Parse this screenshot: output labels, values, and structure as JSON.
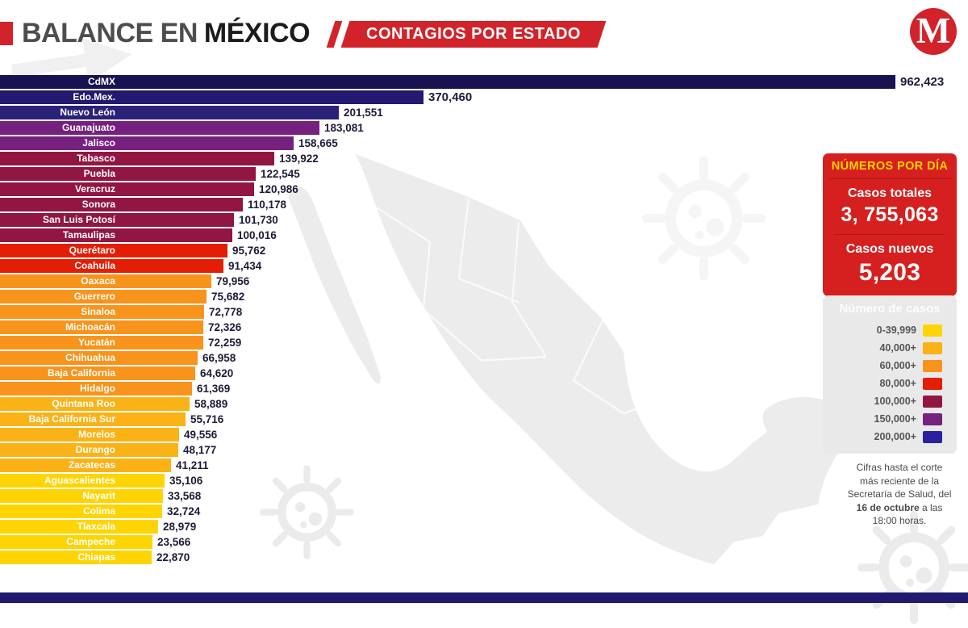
{
  "header": {
    "title_prefix": "BALANCE EN",
    "title_emphasis": "MÉXICO",
    "banner_label": "CONTAGIOS POR ESTADO",
    "logo_letter": "M",
    "logo_registered": "®"
  },
  "chart_data": {
    "type": "bar",
    "orientation": "horizontal",
    "title": "CONTAGIOS POR ESTADO",
    "xlim": [
      0,
      962423
    ],
    "categories": [
      "CdMX",
      "Edo.Mex.",
      "Nuevo León",
      "Guanajuato",
      "Jalisco",
      "Tabasco",
      "Puebla",
      "Veracruz",
      "Sonora",
      "San Luis Potosí",
      "Tamaulipas",
      "Querétaro",
      "Coahuila",
      "Oaxaca",
      "Guerrero",
      "Sinaloa",
      "Michoacán",
      "Yucatán",
      "Chihuahua",
      "Baja California",
      "Hidalgo",
      "Quintana Roo",
      "Baja California Sur",
      "Morelos",
      "Durango",
      "Zacatecas",
      "Aguascalientes",
      "Nayarit",
      "Colima",
      "Tlaxcala",
      "Campeche",
      "Chiapas"
    ],
    "values": [
      962423,
      370460,
      201551,
      183081,
      158665,
      139922,
      122545,
      120986,
      110178,
      101730,
      100016,
      95762,
      91434,
      79956,
      75682,
      72778,
      72326,
      72259,
      66958,
      64620,
      61369,
      58889,
      55716,
      49556,
      48177,
      41211,
      35106,
      33568,
      32724,
      28979,
      23566,
      22870
    ],
    "value_labels": [
      "962,423",
      "370,460",
      "201,551",
      "183,081",
      "158,665",
      "139,922",
      "122,545",
      "120,986",
      "110,178",
      "101,730",
      "100,016",
      "95,762",
      "91,434",
      "79,956",
      "75,682",
      "72,778",
      "72,326",
      "72,259",
      "66,958",
      "64,620",
      "61,369",
      "58,889",
      "55,716",
      "49,556",
      "48,177",
      "41,211",
      "35,106",
      "33,568",
      "32,724",
      "28,979",
      "23,566",
      "22,870"
    ],
    "bar_colors": [
      "#181253",
      "#221a6e",
      "#2a2178",
      "#76207f",
      "#76207f",
      "#911641",
      "#911641",
      "#911641",
      "#911641",
      "#911641",
      "#911641",
      "#e31e05",
      "#e31e05",
      "#f8931b",
      "#f8931b",
      "#f8931b",
      "#f8931b",
      "#f8931b",
      "#f8931b",
      "#f8931b",
      "#f8931b",
      "#fbb216",
      "#fbb216",
      "#fbb216",
      "#fbb216",
      "#fbb216",
      "#fed404",
      "#fed404",
      "#fed404",
      "#fed404",
      "#fed404",
      "#fed404"
    ]
  },
  "daily_panel": {
    "title": "NÚMEROS POR DÍA",
    "total_label": "Casos totales",
    "total_value": "3, 755,063",
    "new_label": "Casos nuevos",
    "new_value": "5,203"
  },
  "legend": {
    "title": "Número de casos",
    "items": [
      {
        "label": "0-39,999",
        "color": "#fed404"
      },
      {
        "label": "40,000+",
        "color": "#fbb216"
      },
      {
        "label": "60,000+",
        "color": "#f8931b"
      },
      {
        "label": "80,000+",
        "color": "#e31e05"
      },
      {
        "label": "100,000+",
        "color": "#911641"
      },
      {
        "label": "150,000+",
        "color": "#76207f"
      },
      {
        "label": "200,000+",
        "color": "#2b21a0"
      }
    ]
  },
  "footnote": {
    "prefix": "Cifras hasta el corte más reciente de la Secretaría de Salud, del ",
    "bold": "16 de octubre",
    "suffix": " a las 18:00 horas."
  },
  "colors": {
    "accent_red": "#d2232a",
    "footer_navy": "#221a70",
    "map_gray": "#ececec"
  }
}
